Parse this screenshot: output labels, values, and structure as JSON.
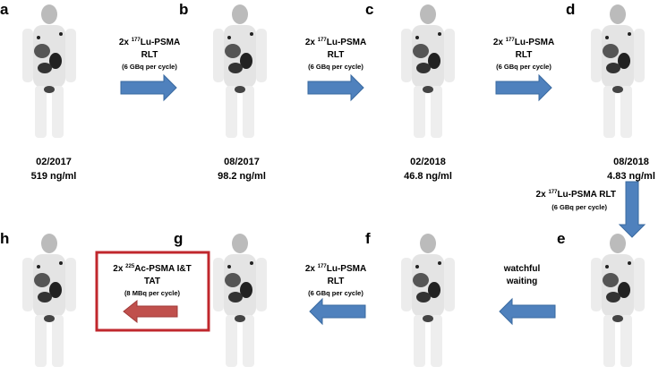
{
  "panels": [
    {
      "label": "a",
      "date": "02/2017",
      "psa": "519 ng/ml"
    },
    {
      "label": "b",
      "date": "08/2017",
      "psa": "98.2 ng/ml"
    },
    {
      "label": "c",
      "date": "02/2018",
      "psa": "46.8 ng/ml"
    },
    {
      "label": "d",
      "date": "08/2018",
      "psa": "4.83 ng/ml"
    },
    {
      "label": "e"
    },
    {
      "label": "f"
    },
    {
      "label": "g"
    },
    {
      "label": "h"
    }
  ],
  "treatments": [
    {
      "prefix": "2x ",
      "isotope": "177",
      "agent": "Lu-PSMA",
      "line2": "RLT",
      "dose": "(6 GBq per cycle)"
    },
    {
      "prefix": "2x ",
      "isotope": "177",
      "agent": "Lu-PSMA",
      "line2": "RLT",
      "dose": "(6 GBq per cycle)"
    },
    {
      "prefix": "2x ",
      "isotope": "177",
      "agent": "Lu-PSMA",
      "line2": "RLT",
      "dose": "(6 GBq per cycle)"
    },
    {
      "prefix": "2x ",
      "isotope": "177",
      "agent": "Lu-PSMA RLT",
      "dose": "(6 GBq per cycle)"
    },
    {
      "line1": "watchful",
      "line2": "waiting"
    },
    {
      "prefix": "2x ",
      "isotope": "177",
      "agent": "Lu-PSMA",
      "line2": "RLT",
      "dose": "(6 GBq per cycle)"
    },
    {
      "prefix": "2x ",
      "isotope": "225",
      "agent": "Ac-PSMA I&T",
      "line2": "TAT",
      "dose": "(8 MBq per cycle)"
    }
  ]
}
